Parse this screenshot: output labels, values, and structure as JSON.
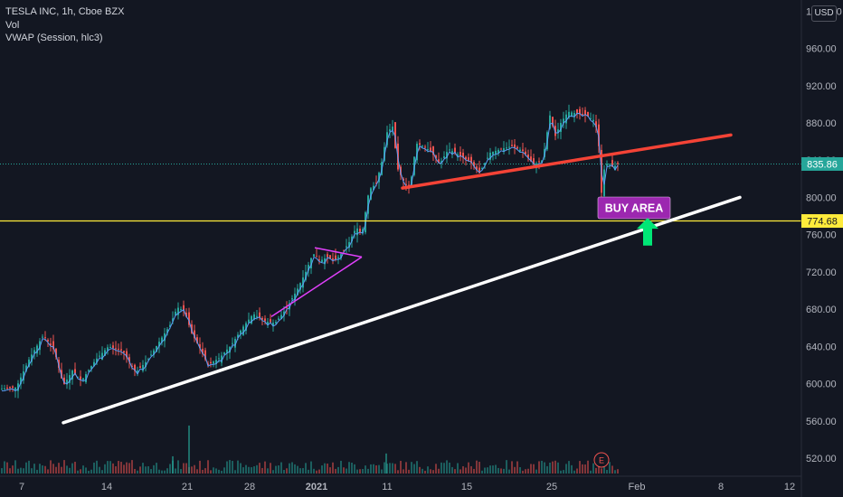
{
  "header": {
    "symbol_line": "TESLA INC, 1h, Cboe BZX",
    "vol_label": "Vol",
    "vwap_label": "VWAP (Session, hlc3)",
    "currency": "USD"
  },
  "chart_data": {
    "type": "candlestick",
    "instrument": "TESLA INC",
    "interval": "1h",
    "exchange": "Cboe BZX",
    "ylim": [
      508,
      1000
    ],
    "y_ticks": [
      "520.00",
      "560.00",
      "600.00",
      "640.00",
      "680.00",
      "720.00",
      "760.00",
      "800.00",
      "840.00",
      "880.00",
      "920.00",
      "960.00",
      "1000.00"
    ],
    "x_ticks": [
      "7",
      "14",
      "21",
      "28",
      "2021",
      "11",
      "15",
      "25",
      "Feb",
      "8",
      "12"
    ],
    "last_price": "835.86",
    "support_level": "774.68",
    "price_path": [
      [
        0,
        594
      ],
      [
        20,
        596
      ],
      [
        35,
        628
      ],
      [
        50,
        652
      ],
      [
        62,
        636
      ],
      [
        72,
        598
      ],
      [
        82,
        614
      ],
      [
        92,
        603
      ],
      [
        108,
        626
      ],
      [
        122,
        640
      ],
      [
        138,
        635
      ],
      [
        152,
        612
      ],
      [
        165,
        625
      ],
      [
        178,
        645
      ],
      [
        190,
        663
      ],
      [
        198,
        682
      ],
      [
        206,
        678
      ],
      [
        214,
        654
      ],
      [
        222,
        640
      ],
      [
        232,
        620
      ],
      [
        245,
        628
      ],
      [
        258,
        642
      ],
      [
        270,
        660
      ],
      [
        282,
        675
      ],
      [
        295,
        667
      ],
      [
        306,
        665
      ],
      [
        318,
        680
      ],
      [
        330,
        700
      ],
      [
        340,
        720
      ],
      [
        348,
        740
      ],
      [
        356,
        732
      ],
      [
        364,
        736
      ],
      [
        372,
        732
      ],
      [
        380,
        740
      ],
      [
        388,
        752
      ],
      [
        396,
        768
      ],
      [
        402,
        760
      ],
      [
        410,
        808
      ],
      [
        418,
        815
      ],
      [
        424,
        838
      ],
      [
        430,
        870
      ],
      [
        436,
        876
      ],
      [
        442,
        830
      ],
      [
        448,
        818
      ],
      [
        455,
        808
      ],
      [
        462,
        858
      ],
      [
        470,
        855
      ],
      [
        478,
        850
      ],
      [
        488,
        836
      ],
      [
        498,
        852
      ],
      [
        510,
        845
      ],
      [
        522,
        838
      ],
      [
        532,
        826
      ],
      [
        544,
        848
      ],
      [
        556,
        852
      ],
      [
        568,
        855
      ],
      [
        580,
        850
      ],
      [
        592,
        835
      ],
      [
        602,
        840
      ],
      [
        610,
        888
      ],
      [
        616,
        866
      ],
      [
        622,
        880
      ],
      [
        630,
        892
      ],
      [
        640,
        890
      ],
      [
        650,
        888
      ],
      [
        660,
        882
      ],
      [
        664,
        855
      ],
      [
        667,
        805
      ],
      [
        670,
        830
      ],
      [
        674,
        838
      ],
      [
        680,
        832
      ],
      [
        684,
        835.86
      ]
    ],
    "volume_spikes": [
      [
        208,
        555
      ],
      [
        426,
        525
      ],
      [
        190,
        522
      ]
    ],
    "annotations": {
      "label": "BUY AREA",
      "trendline_support": [
        [
          70,
          558
        ],
        [
          818,
          800
        ]
      ],
      "trendline_resistance": [
        [
          445,
          810
        ],
        [
          808,
          867
        ]
      ],
      "triangle_top": [
        [
          348,
          746
        ],
        [
          400,
          736
        ]
      ],
      "triangle_bottom": [
        [
          300,
          672
        ],
        [
          400,
          736
        ]
      ],
      "arrow": [
        [
          716,
          756
        ],
        [
          716,
          776
        ]
      ]
    },
    "colors": {
      "background": "#131722",
      "up": "#26a69a",
      "down": "#ef5350",
      "vwap": "#5b9cf6",
      "support_line": "#ffffff",
      "resistance_line": "#f44336",
      "horizontal_line": "#ffeb3b",
      "last_price_line": "#26a69a",
      "triangle": "#e040fb",
      "label_fill": "#9c27b0",
      "arrow": "#00e676"
    },
    "grid": false
  }
}
